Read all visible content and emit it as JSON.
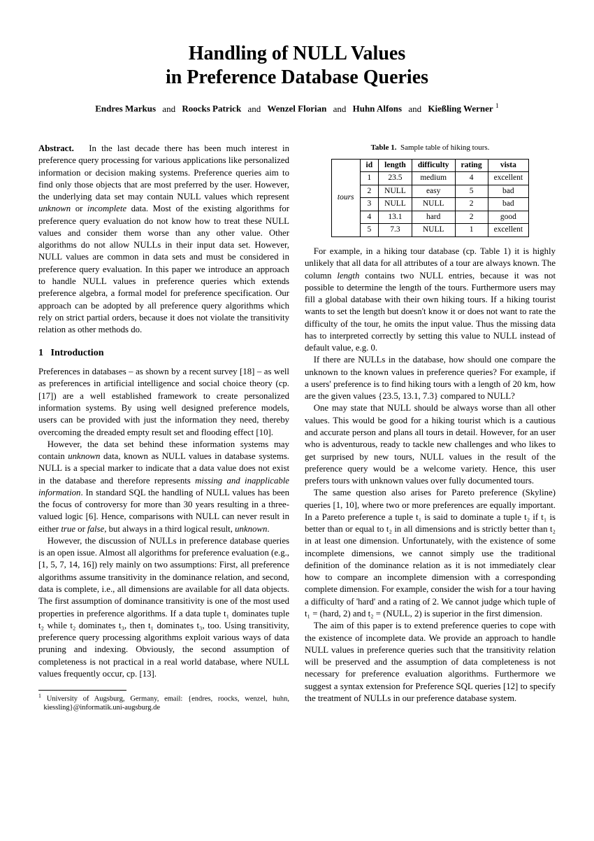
{
  "title_line1": "Handling of NULL Values",
  "title_line2": "in Preference Database Queries",
  "authors": {
    "a1": "Endres Markus",
    "a2": "Roocks Patrick",
    "a3": "Wenzel Florian",
    "a4": "Huhn Alfons",
    "a5": "Kießling Werner",
    "sep": "and",
    "affmark": "1"
  },
  "abstract": {
    "label": "Abstract.",
    "text": "In the last decade there has been much interest in preference query processing for various applications like personalized information or decision making systems. Preference queries aim to find only those objects that are most preferred by the user. However, the underlying data set may contain NULL values which represent unknown or incomplete data. Most of the existing algorithms for preference query evaluation do not know how to treat these NULL values and consider them worse than any other value. Other algorithms do not allow NULLs in their input data set. However, NULL values are common in data sets and must be considered in preference query evaluation. In this paper we introduce an approach to handle NULL values in preference queries which extends preference algebra, a formal model for preference specification. Our approach can be adopted by all preference query algorithms which rely on strict partial orders, because it does not violate the transitivity relation as other methods do."
  },
  "section1": {
    "num": "1",
    "title": "Introduction"
  },
  "intro": {
    "p1": "Preferences in databases – as shown by a recent survey [18] – as well as preferences in artificial intelligence and social choice theory (cp. [17]) are a well established framework to create personalized information systems. By using well designed preference models, users can be provided with just the information they need, thereby overcoming the dreaded empty result set and flooding effect [10].",
    "p2a": "However, the data set behind these information systems may contain ",
    "p2b": " data, known as NULL values in database systems. NULL is a special marker to indicate that a data value does not exist in the database and therefore represents ",
    "p2c": ". In standard SQL the handling of NULL values has been the focus of controversy for more than 30 years resulting in a three-valued logic [6]. Hence, comparisons with NULL can never result in either ",
    "p2d": ", but always in a third logical result, ",
    "unknown": "unknown",
    "missing": "missing and inapplicable information",
    "true": "true",
    "false": "false",
    "or": " or ",
    "unknown2": "unknown",
    "period": ".",
    "p3": "However, the discussion of NULLs in preference database queries is an open issue. Almost all algorithms for preference evaluation (e.g., [1, 5, 7, 14, 16]) rely mainly on two assumptions: First, all preference algorithms assume transitivity in the dominance relation, and second, data is complete, i.e., all dimensions are available for all data objects. The first assumption of dominance transitivity is one of the most used properties in preference algorithms. If a data tuple t₁ dominates tuple t₂ while t₂ dominates t₃, then t₁ dominates t₃, too. Using transitivity, preference query processing algorithms exploit various ways of data pruning and indexing. Obviously, the second assumption of completeness is not practical in a real world database, where NULL values frequently occur, cp. [13]."
  },
  "footnote": {
    "mark": "1",
    "text": "University of Augsburg, Germany, email: {endres, roocks, wenzel, huhn, kiessling}@informatik.uni-augsburg.de"
  },
  "table1": {
    "caption_label": "Table 1.",
    "caption_text": "Sample table of hiking tours.",
    "headers": {
      "tours": "tours",
      "id": "id",
      "length": "length",
      "difficulty": "difficulty",
      "rating": "rating",
      "vista": "vista"
    },
    "rows": [
      {
        "id": "1",
        "length": "23.5",
        "difficulty": "medium",
        "rating": "4",
        "vista": "excellent"
      },
      {
        "id": "2",
        "length": "NULL",
        "difficulty": "easy",
        "rating": "5",
        "vista": "bad"
      },
      {
        "id": "3",
        "length": "NULL",
        "difficulty": "NULL",
        "rating": "2",
        "vista": "bad"
      },
      {
        "id": "4",
        "length": "13.1",
        "difficulty": "hard",
        "rating": "2",
        "vista": "good"
      },
      {
        "id": "5",
        "length": "7.3",
        "difficulty": "NULL",
        "rating": "1",
        "vista": "excellent"
      }
    ]
  },
  "rightcol": {
    "p1a": "For example, in a hiking tour database (cp. Table 1) it is highly unlikely that all data for all attributes of a tour are always known. The column ",
    "length_it": "length",
    "p1b": " contains two NULL entries, because it was not possible to determine the length of the tours. Furthermore users may fill a global database with their own hiking tours. If a hiking tourist wants to set the length but doesn't know it or does not want to rate the difficulty of the tour, he omits the input value. Thus the missing data has to interpreted correctly by setting this value to NULL instead of default value, e.g. 0.",
    "p2": "If there are NULLs in the database, how should one compare the unknown to the known values in preference queries? For example, if a users' preference is to find hiking tours with a length of 20 km, how are the given values {23.5, 13.1, 7.3} compared to NULL?",
    "p3": "One may state that NULL should be always worse than all other values. This would be good for a hiking tourist which is a cautious and accurate person and plans all tours in detail. However, for an user who is adventurous, ready to tackle new challenges and who likes to get surprised by new tours, NULL values in the result of the preference query would be a welcome variety. Hence, this user prefers tours with unknown values over fully documented tours.",
    "p4": "The same question also arises for Pareto preference (Skyline) queries [1, 10], where two or more preferences are equally important. In a Pareto preference a tuple t₁ is said to dominate a tuple t₂ if t₁ is better than or equal to t₂ in all dimensions and is strictly better than t₂ in at least one dimension. Unfortunately, with the existence of some incomplete dimensions, we cannot simply use the traditional definition of the dominance relation as it is not immediately clear how to compare an incomplete dimension with a corresponding complete dimension. For example, consider the wish for a tour having a difficulty of 'hard' and a rating of 2. We cannot judge which tuple of t₁ = (hard, 2) and t₂ = (NULL, 2) is superior in the first dimension.",
    "p5": "The aim of this paper is to extend preference queries to cope with the existence of incomplete data. We provide an approach to handle NULL values in preference queries such that the transitivity relation will be preserved and the assumption of data completeness is not necessary for preference evaluation algorithms. Furthermore we suggest a syntax extension for Preference SQL queries [12] to specify the treatment of NULLs in our preference database system."
  }
}
